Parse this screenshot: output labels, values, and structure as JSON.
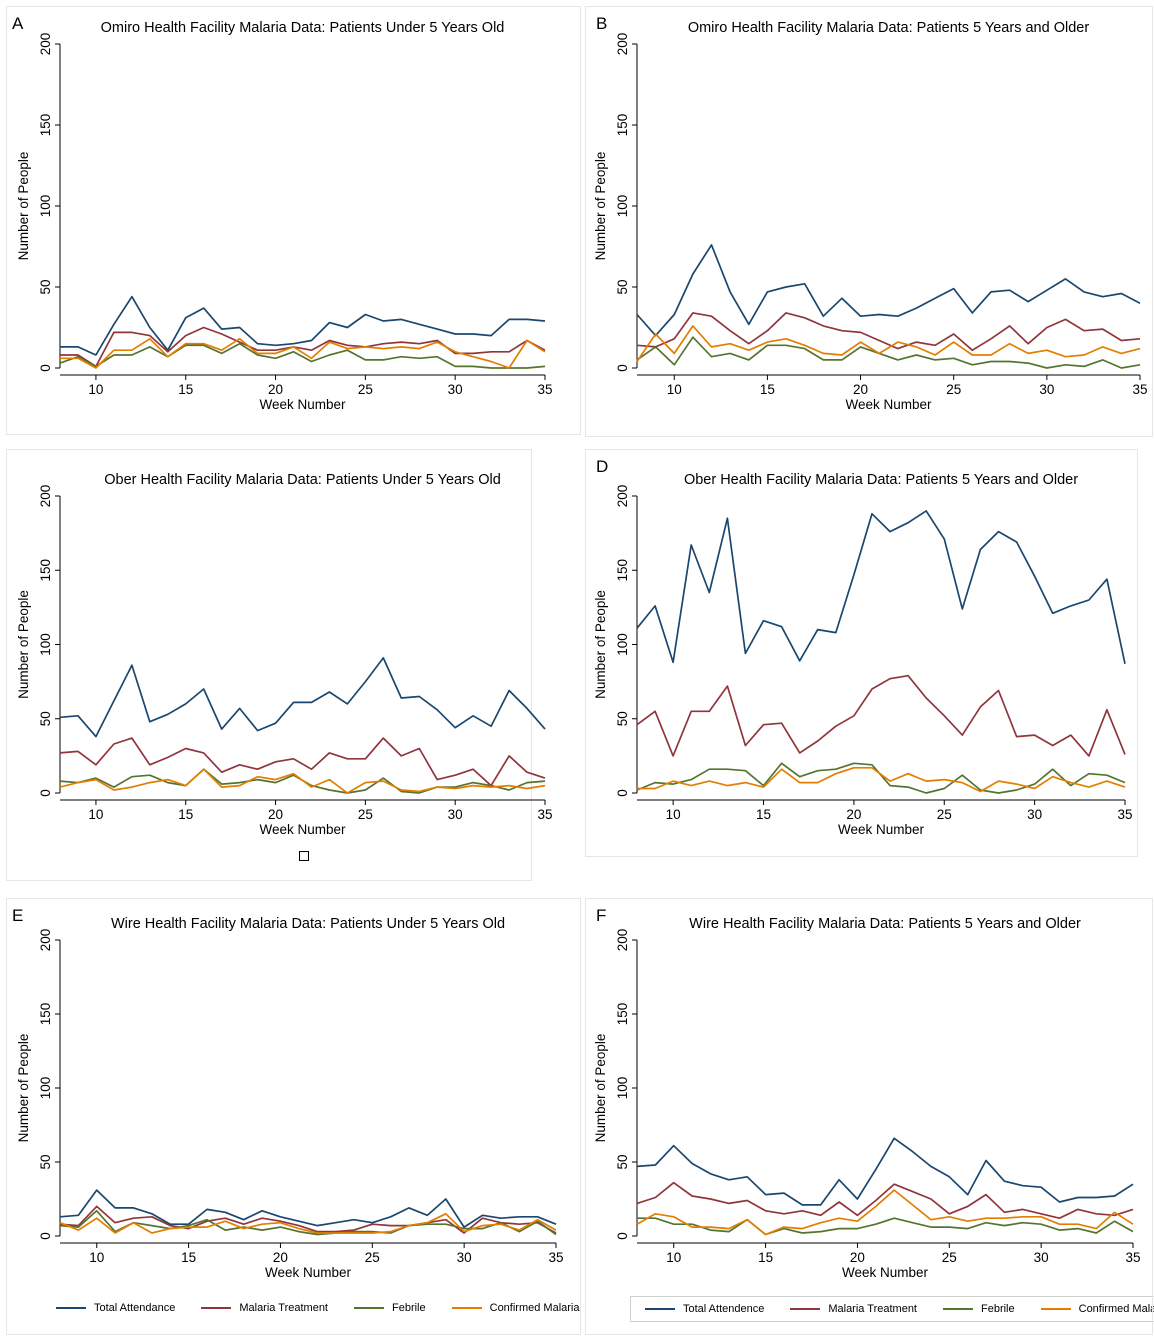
{
  "colors": {
    "Total Attendance": "#1a476f",
    "Malaria Treatment": "#90353b",
    "Febrile": "#55752f",
    "Confirmed Malaria": "#e37e00"
  },
  "legend_left": [
    "Total Attendance",
    "Malaria Treatment",
    "Febrile",
    "Confirmed Malaria"
  ],
  "legend_right": [
    "Total Attendence",
    "Malaria Treatment",
    "Febrile",
    "Confirmed Malaria"
  ],
  "square_glyph": "",
  "chart_data": [
    {
      "letter": "A",
      "type": "line",
      "title": "Omiro Health Facility Malaria Data: Patients Under 5 Years Old",
      "xlabel": "Week Number",
      "ylabel": "Number of People",
      "xlim": [
        8,
        35
      ],
      "ylim": [
        0,
        200
      ],
      "xticks": [
        10,
        15,
        20,
        25,
        30,
        35
      ],
      "yticks": [
        0,
        50,
        100,
        150,
        200
      ],
      "x": [
        8,
        9,
        10,
        11,
        12,
        13,
        14,
        15,
        16,
        17,
        18,
        19,
        20,
        21,
        22,
        23,
        24,
        25,
        26,
        27,
        28,
        29,
        30,
        31,
        32,
        33,
        34,
        35
      ],
      "series": [
        {
          "name": "Total Attendance",
          "values": [
            13,
            13,
            8,
            27,
            44,
            25,
            11,
            31,
            37,
            24,
            25,
            15,
            14,
            15,
            17,
            28,
            25,
            33,
            29,
            30,
            27,
            24,
            21,
            21,
            20,
            30,
            30,
            29
          ]
        },
        {
          "name": "Malaria Treatment",
          "values": [
            8,
            8,
            1,
            22,
            22,
            20,
            10,
            20,
            25,
            21,
            16,
            11,
            11,
            13,
            11,
            17,
            14,
            13,
            15,
            16,
            15,
            17,
            9,
            9,
            10,
            10,
            17,
            11
          ]
        },
        {
          "name": "Febrile",
          "values": [
            3,
            7,
            1,
            8,
            8,
            13,
            7,
            14,
            14,
            9,
            15,
            8,
            6,
            10,
            4,
            8,
            11,
            5,
            5,
            7,
            6,
            7,
            1,
            1,
            0,
            0,
            0,
            1
          ]
        },
        {
          "name": "Confirmed Malaria",
          "values": [
            6,
            6,
            0,
            11,
            11,
            18,
            7,
            15,
            15,
            11,
            18,
            9,
            9,
            13,
            6,
            16,
            12,
            13,
            12,
            13,
            12,
            16,
            10,
            7,
            4,
            0,
            17,
            10
          ]
        }
      ]
    },
    {
      "letter": "B",
      "type": "line",
      "title": "Omiro Health Facility Malaria Data: Patients 5 Years and Older",
      "xlabel": "Week Number",
      "ylabel": "Number of People",
      "xlim": [
        8,
        35
      ],
      "ylim": [
        0,
        200
      ],
      "xticks": [
        10,
        15,
        20,
        25,
        30,
        35
      ],
      "yticks": [
        0,
        50,
        100,
        150,
        200
      ],
      "x": [
        8,
        9,
        10,
        11,
        12,
        13,
        14,
        15,
        16,
        17,
        18,
        19,
        20,
        21,
        22,
        23,
        24,
        25,
        26,
        27,
        28,
        29,
        30,
        31,
        32,
        33,
        34,
        35
      ],
      "series": [
        {
          "name": "Total Attendance",
          "values": [
            33,
            20,
            33,
            58,
            76,
            47,
            27,
            47,
            50,
            52,
            32,
            43,
            32,
            33,
            32,
            37,
            43,
            49,
            34,
            47,
            48,
            41,
            48,
            55,
            47,
            44,
            46,
            40
          ]
        },
        {
          "name": "Malaria Treatment",
          "values": [
            14,
            13,
            18,
            34,
            32,
            23,
            15,
            23,
            34,
            31,
            26,
            23,
            22,
            17,
            12,
            16,
            14,
            21,
            11,
            18,
            26,
            15,
            25,
            30,
            23,
            24,
            17,
            18
          ]
        },
        {
          "name": "Febrile",
          "values": [
            5,
            13,
            2,
            19,
            7,
            9,
            5,
            14,
            14,
            12,
            5,
            5,
            13,
            9,
            5,
            8,
            5,
            6,
            2,
            4,
            4,
            3,
            0,
            2,
            1,
            5,
            0,
            2
          ]
        },
        {
          "name": "Confirmed Malaria",
          "values": [
            4,
            21,
            9,
            26,
            13,
            15,
            11,
            16,
            18,
            14,
            9,
            8,
            16,
            9,
            16,
            13,
            8,
            16,
            8,
            8,
            15,
            9,
            11,
            7,
            8,
            13,
            9,
            12
          ]
        }
      ]
    },
    {
      "letter": "",
      "type": "line",
      "title": "Ober Health Facility Malaria Data: Patients Under 5 Years Old",
      "xlabel": "Week Number",
      "ylabel": "Number of People",
      "xlim": [
        8,
        35
      ],
      "ylim": [
        0,
        200
      ],
      "xticks": [
        10,
        15,
        20,
        25,
        30,
        35
      ],
      "yticks": [
        0,
        50,
        100,
        150,
        200
      ],
      "x": [
        8,
        9,
        10,
        11,
        12,
        13,
        14,
        15,
        16,
        17,
        18,
        19,
        20,
        21,
        22,
        23,
        24,
        25,
        26,
        27,
        28,
        29,
        30,
        31,
        32,
        33,
        34,
        35
      ],
      "series": [
        {
          "name": "Total Attendance",
          "values": [
            51,
            52,
            38,
            62,
            86,
            48,
            53,
            60,
            70,
            43,
            57,
            42,
            47,
            61,
            61,
            68,
            60,
            75,
            91,
            64,
            65,
            56,
            44,
            52,
            45,
            69,
            57,
            43
          ]
        },
        {
          "name": "Malaria Treatment",
          "values": [
            27,
            28,
            19,
            33,
            37,
            19,
            24,
            30,
            27,
            14,
            19,
            16,
            21,
            23,
            16,
            27,
            23,
            23,
            37,
            25,
            30,
            9,
            12,
            16,
            5,
            25,
            14,
            10
          ]
        },
        {
          "name": "Febrile",
          "values": [
            8,
            7,
            10,
            4,
            11,
            12,
            7,
            5,
            16,
            6,
            7,
            9,
            7,
            12,
            5,
            2,
            0,
            2,
            10,
            1,
            0,
            4,
            4,
            7,
            5,
            2,
            7,
            8
          ]
        },
        {
          "name": "Confirmed Malaria",
          "values": [
            4,
            7,
            9,
            2,
            4,
            7,
            9,
            5,
            16,
            4,
            5,
            11,
            9,
            13,
            4,
            9,
            0,
            7,
            8,
            2,
            1,
            4,
            3,
            5,
            4,
            5,
            3,
            5
          ]
        }
      ]
    },
    {
      "letter": "D",
      "type": "line",
      "title": "Ober Health Facility Malaria Data: Patients 5 Years and Older",
      "xlabel": "Week Number",
      "ylabel": "Number of People",
      "xlim": [
        8,
        35
      ],
      "ylim": [
        0,
        200
      ],
      "xticks": [
        10,
        15,
        20,
        25,
        30,
        35
      ],
      "yticks": [
        0,
        50,
        100,
        150,
        200
      ],
      "x": [
        8,
        9,
        10,
        11,
        12,
        13,
        14,
        15,
        16,
        17,
        18,
        19,
        20,
        21,
        22,
        23,
        24,
        25,
        26,
        27,
        28,
        29,
        30,
        31,
        32,
        33,
        34,
        35
      ],
      "series": [
        {
          "name": "Total Attendance",
          "values": [
            111,
            126,
            88,
            167,
            135,
            185,
            94,
            116,
            112,
            89,
            110,
            108,
            147,
            188,
            176,
            182,
            190,
            171,
            124,
            164,
            176,
            169,
            146,
            121,
            126,
            130,
            144,
            87
          ]
        },
        {
          "name": "Malaria Treatment",
          "values": [
            46,
            55,
            25,
            55,
            55,
            72,
            32,
            46,
            47,
            27,
            35,
            45,
            52,
            70,
            77,
            79,
            64,
            52,
            39,
            58,
            69,
            38,
            39,
            32,
            39,
            25,
            56,
            26
          ]
        },
        {
          "name": "Febrile",
          "values": [
            2,
            7,
            6,
            9,
            16,
            16,
            15,
            5,
            20,
            11,
            15,
            16,
            20,
            19,
            5,
            4,
            0,
            3,
            12,
            2,
            0,
            2,
            6,
            16,
            5,
            13,
            12,
            7
          ]
        },
        {
          "name": "Confirmed Malaria",
          "values": [
            3,
            3,
            8,
            5,
            8,
            5,
            7,
            4,
            16,
            7,
            7,
            13,
            17,
            17,
            8,
            13,
            8,
            9,
            7,
            1,
            8,
            6,
            3,
            11,
            7,
            4,
            8,
            4
          ]
        }
      ]
    },
    {
      "letter": "E",
      "type": "line",
      "title": "Wire Health Facility Malaria Data: Patients Under 5 Years Old",
      "xlabel": "Week Number",
      "ylabel": "Number of People",
      "xlim": [
        8,
        35
      ],
      "ylim": [
        0,
        200
      ],
      "xticks": [
        10,
        15,
        20,
        25,
        30,
        35
      ],
      "yticks": [
        0,
        50,
        100,
        150,
        200
      ],
      "x": [
        8,
        9,
        10,
        11,
        12,
        13,
        14,
        15,
        16,
        17,
        18,
        19,
        20,
        21,
        22,
        23,
        24,
        25,
        26,
        27,
        28,
        29,
        30,
        31,
        32,
        33,
        34,
        35
      ],
      "series": [
        {
          "name": "Total Attendance",
          "values": [
            13,
            14,
            31,
            19,
            19,
            15,
            8,
            8,
            18,
            16,
            11,
            17,
            13,
            10,
            7,
            9,
            11,
            9,
            13,
            19,
            14,
            25,
            6,
            14,
            12,
            13,
            13,
            8
          ]
        },
        {
          "name": "Malaria Treatment",
          "values": [
            8,
            7,
            20,
            9,
            12,
            13,
            7,
            5,
            10,
            12,
            8,
            12,
            10,
            7,
            3,
            3,
            4,
            8,
            7,
            7,
            9,
            11,
            2,
            12,
            9,
            8,
            9,
            2
          ]
        },
        {
          "name": "Febrile",
          "values": [
            7,
            6,
            17,
            3,
            9,
            7,
            5,
            7,
            11,
            4,
            6,
            4,
            6,
            3,
            1,
            2,
            3,
            3,
            2,
            7,
            8,
            8,
            5,
            5,
            9,
            3,
            10,
            1
          ]
        },
        {
          "name": "Confirmed Malaria",
          "values": [
            9,
            4,
            12,
            2,
            9,
            2,
            5,
            6,
            6,
            10,
            5,
            8,
            9,
            5,
            2,
            2,
            2,
            2,
            3,
            7,
            9,
            15,
            3,
            7,
            8,
            4,
            11,
            4
          ]
        }
      ]
    },
    {
      "letter": "F",
      "type": "line",
      "title": "Wire Health Facility Malaria Data: Patients 5 Years and Older",
      "xlabel": "Week Number",
      "ylabel": "Number of People",
      "xlim": [
        8,
        35
      ],
      "ylim": [
        0,
        200
      ],
      "xticks": [
        10,
        15,
        20,
        25,
        30,
        35
      ],
      "yticks": [
        0,
        50,
        100,
        150,
        200
      ],
      "x": [
        8,
        9,
        10,
        11,
        12,
        13,
        14,
        15,
        16,
        17,
        18,
        19,
        20,
        21,
        22,
        23,
        24,
        25,
        26,
        27,
        28,
        29,
        30,
        31,
        32,
        33,
        34,
        35
      ],
      "series": [
        {
          "name": "Total Attendance",
          "values": [
            47,
            48,
            61,
            49,
            42,
            38,
            40,
            28,
            29,
            21,
            21,
            38,
            25,
            45,
            66,
            57,
            47,
            40,
            28,
            51,
            37,
            34,
            33,
            23,
            26,
            26,
            27,
            35
          ]
        },
        {
          "name": "Malaria Treatment",
          "values": [
            22,
            26,
            36,
            27,
            25,
            22,
            24,
            17,
            15,
            17,
            14,
            23,
            14,
            24,
            35,
            30,
            25,
            15,
            20,
            28,
            16,
            18,
            15,
            12,
            18,
            15,
            14,
            18
          ]
        },
        {
          "name": "Febrile",
          "values": [
            12,
            12,
            8,
            8,
            4,
            3,
            11,
            1,
            5,
            2,
            3,
            5,
            5,
            8,
            12,
            9,
            6,
            6,
            5,
            9,
            7,
            9,
            8,
            4,
            5,
            2,
            10,
            3
          ]
        },
        {
          "name": "Confirmed Malaria",
          "values": [
            8,
            15,
            13,
            6,
            6,
            5,
            11,
            1,
            6,
            5,
            9,
            12,
            10,
            20,
            31,
            21,
            11,
            13,
            10,
            12,
            12,
            13,
            13,
            8,
            8,
            5,
            16,
            8
          ]
        }
      ]
    }
  ]
}
